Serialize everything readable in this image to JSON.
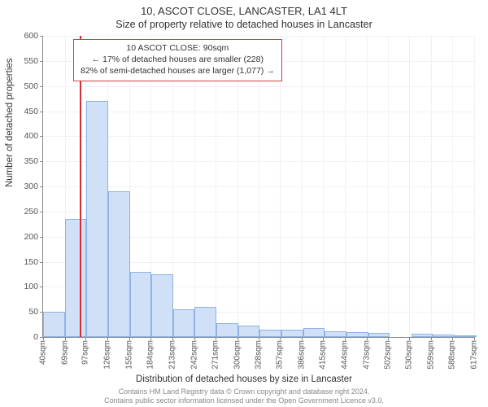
{
  "title_main": "10, ASCOT CLOSE, LANCASTER, LA1 4LT",
  "title_sub": "Size of property relative to detached houses in Lancaster",
  "yaxis_label": "Number of detached properties",
  "xaxis_label": "Distribution of detached houses by size in Lancaster",
  "footer_line1": "Contains HM Land Registry data © Crown copyright and database right 2024.",
  "footer_line2": "Contains public sector information licensed under the Open Government Licence v3.0.",
  "info_box": {
    "line1": "10 ASCOT CLOSE: 90sqm",
    "line2": "← 17% of detached houses are smaller (228)",
    "line3": "82% of semi-detached houses are larger (1,077) →"
  },
  "chart": {
    "type": "histogram",
    "ylim": [
      0,
      600
    ],
    "ytick_step": 50,
    "background_color": "#ffffff",
    "grid_color": "#eef2f7",
    "axis_color": "#888888",
    "bar_fill": "#cfe0f7",
    "bar_border": "#8fb3e5",
    "marker_color": "#d03030",
    "marker_x_value": 90,
    "title_fontsize": 13,
    "label_fontsize": 11.5,
    "tick_fontsize": 10.5,
    "x_tick_labels": [
      "40sqm",
      "69sqm",
      "97sqm",
      "126sqm",
      "155sqm",
      "184sqm",
      "213sqm",
      "242sqm",
      "271sqm",
      "300sqm",
      "328sqm",
      "357sqm",
      "386sqm",
      "415sqm",
      "444sqm",
      "473sqm",
      "502sqm",
      "530sqm",
      "559sqm",
      "588sqm",
      "617sqm"
    ],
    "x_range": [
      40,
      617
    ],
    "bar_bin_width": 29,
    "values": [
      50,
      235,
      470,
      290,
      130,
      125,
      55,
      60,
      28,
      22,
      15,
      15,
      18,
      12,
      10,
      8,
      0,
      6,
      5,
      4
    ]
  }
}
